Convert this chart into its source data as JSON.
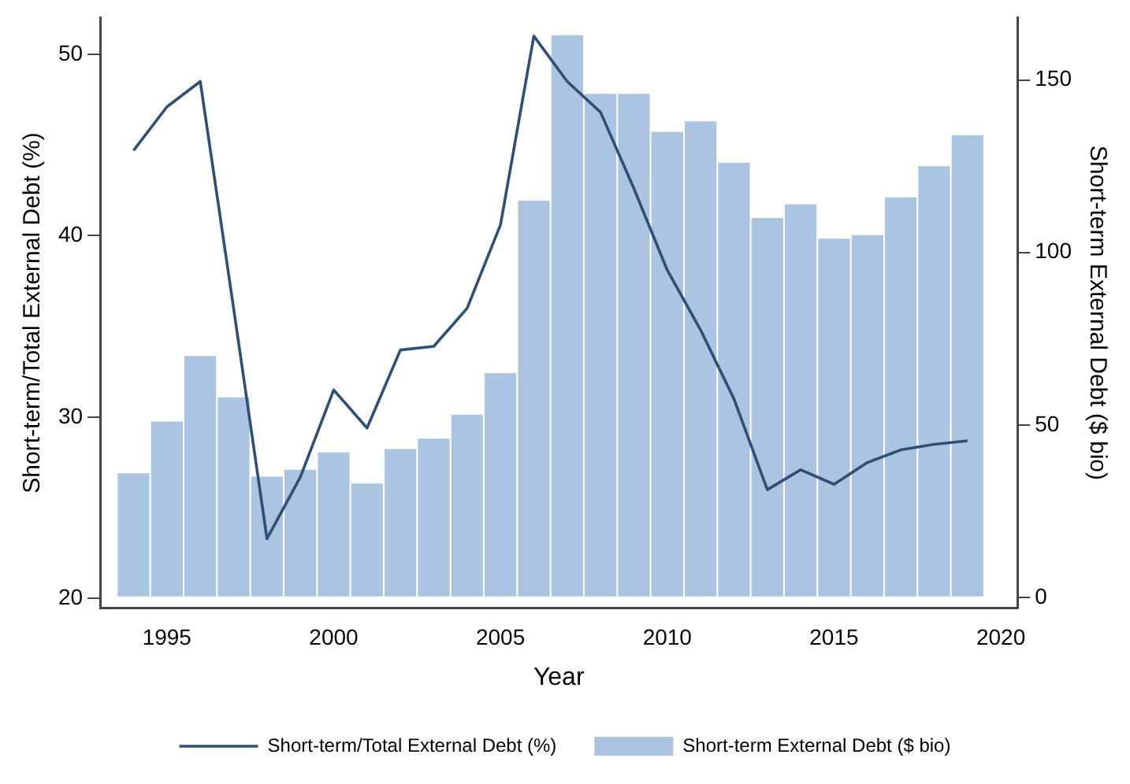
{
  "chart_data": {
    "type": "bar",
    "xlabel": "Year",
    "ylabel": "Short-term/Total External Debt (%)",
    "y2label": "Short-term External Debt ($ bio)",
    "x": [
      1994,
      1995,
      1996,
      1997,
      1998,
      1999,
      2000,
      2001,
      2002,
      2003,
      2004,
      2005,
      2006,
      2007,
      2008,
      2009,
      2010,
      2011,
      2012,
      2013,
      2014,
      2015,
      2016,
      2017,
      2018,
      2019
    ],
    "series": [
      {
        "name": "Short-term/Total External Debt (%)",
        "type": "line",
        "axis": "y",
        "color": "#2f4f75",
        "values": [
          44.7,
          47.1,
          48.5,
          36.0,
          23.3,
          26.7,
          31.5,
          29.4,
          33.7,
          33.9,
          36.0,
          40.6,
          51.0,
          48.5,
          46.8,
          42.6,
          38.1,
          34.8,
          31.0,
          26.0,
          27.1,
          26.3,
          27.5,
          28.2,
          28.5,
          28.7
        ]
      },
      {
        "name": "Short-term External Debt ($ bio)",
        "axis": "y2",
        "color": "#aac4e2",
        "values": [
          36,
          51,
          70,
          58,
          35,
          37,
          42,
          33,
          43,
          46,
          53,
          65,
          115,
          163,
          146,
          146,
          135,
          138,
          126,
          110,
          114,
          104,
          105,
          116,
          125,
          134
        ]
      }
    ],
    "xlim": [
      1993,
      2020.5
    ],
    "xticks": [
      1995,
      2000,
      2005,
      2010,
      2015,
      2020
    ],
    "ylim": [
      19.5,
      52
    ],
    "yticks": [
      20,
      30,
      40,
      50
    ],
    "y2lim": [
      -3,
      168
    ],
    "y2ticks": [
      0,
      50,
      100,
      150
    ],
    "grid": false,
    "legend": "bottom",
    "marker": "none"
  }
}
